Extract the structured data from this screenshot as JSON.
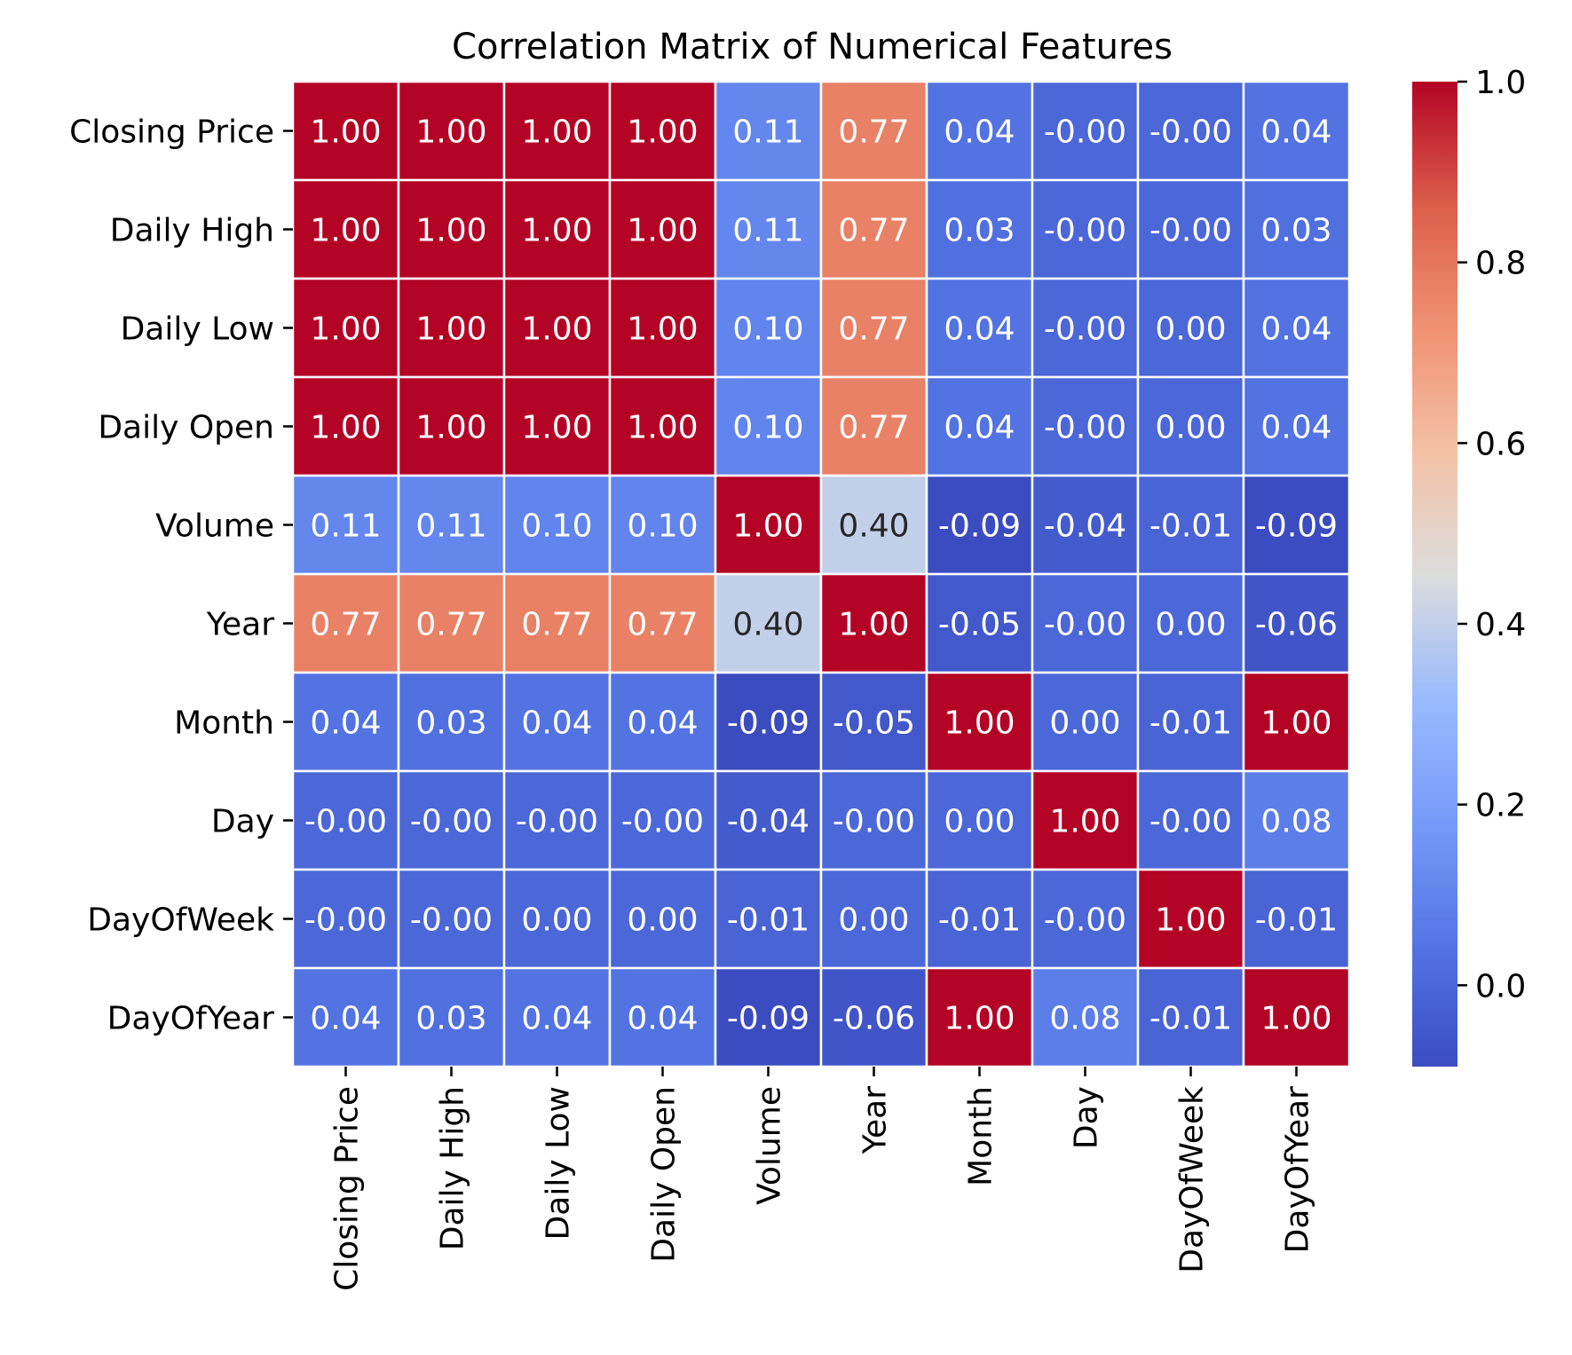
{
  "chart_data": {
    "type": "heatmap",
    "title": "Correlation Matrix of Numerical Features",
    "row_labels": [
      "Closing Price",
      "Daily High",
      "Daily Low",
      "Daily Open",
      "Volume",
      "Year",
      "Month",
      "Day",
      "DayOfWeek",
      "DayOfYear"
    ],
    "col_labels": [
      "Closing Price",
      "Daily High",
      "Daily Low",
      "Daily Open",
      "Volume",
      "Year",
      "Month",
      "Day",
      "DayOfWeek",
      "DayOfYear"
    ],
    "values": [
      [
        1.0,
        1.0,
        1.0,
        1.0,
        0.11,
        0.77,
        0.04,
        -0.0,
        -0.0,
        0.04
      ],
      [
        1.0,
        1.0,
        1.0,
        1.0,
        0.11,
        0.77,
        0.03,
        -0.0,
        -0.0,
        0.03
      ],
      [
        1.0,
        1.0,
        1.0,
        1.0,
        0.1,
        0.77,
        0.04,
        -0.0,
        0.0,
        0.04
      ],
      [
        1.0,
        1.0,
        1.0,
        1.0,
        0.1,
        0.77,
        0.04,
        -0.0,
        0.0,
        0.04
      ],
      [
        0.11,
        0.11,
        0.1,
        0.1,
        1.0,
        0.4,
        -0.09,
        -0.04,
        -0.01,
        -0.09
      ],
      [
        0.77,
        0.77,
        0.77,
        0.77,
        0.4,
        1.0,
        -0.05,
        -0.0,
        0.0,
        -0.06
      ],
      [
        0.04,
        0.03,
        0.04,
        0.04,
        -0.09,
        -0.05,
        1.0,
        0.0,
        -0.01,
        1.0
      ],
      [
        -0.0,
        -0.0,
        -0.0,
        -0.0,
        -0.04,
        -0.0,
        0.0,
        1.0,
        -0.0,
        0.08
      ],
      [
        -0.0,
        -0.0,
        0.0,
        0.0,
        -0.01,
        0.0,
        -0.01,
        -0.0,
        1.0,
        -0.01
      ],
      [
        0.04,
        0.03,
        0.04,
        0.04,
        -0.09,
        -0.06,
        1.0,
        0.08,
        -0.01,
        1.0
      ]
    ],
    "value_labels": [
      [
        "1.00",
        "1.00",
        "1.00",
        "1.00",
        "0.11",
        "0.77",
        "0.04",
        "-0.00",
        "-0.00",
        "0.04"
      ],
      [
        "1.00",
        "1.00",
        "1.00",
        "1.00",
        "0.11",
        "0.77",
        "0.03",
        "-0.00",
        "-0.00",
        "0.03"
      ],
      [
        "1.00",
        "1.00",
        "1.00",
        "1.00",
        "0.10",
        "0.77",
        "0.04",
        "-0.00",
        "0.00",
        "0.04"
      ],
      [
        "1.00",
        "1.00",
        "1.00",
        "1.00",
        "0.10",
        "0.77",
        "0.04",
        "-0.00",
        "0.00",
        "0.04"
      ],
      [
        "0.11",
        "0.11",
        "0.10",
        "0.10",
        "1.00",
        "0.40",
        "-0.09",
        "-0.04",
        "-0.01",
        "-0.09"
      ],
      [
        "0.77",
        "0.77",
        "0.77",
        "0.77",
        "0.40",
        "1.00",
        "-0.05",
        "-0.00",
        "0.00",
        "-0.06"
      ],
      [
        "0.04",
        "0.03",
        "0.04",
        "0.04",
        "-0.09",
        "-0.05",
        "1.00",
        "0.00",
        "-0.01",
        "1.00"
      ],
      [
        "-0.00",
        "-0.00",
        "-0.00",
        "-0.00",
        "-0.04",
        "-0.00",
        "0.00",
        "1.00",
        "-0.00",
        "0.08"
      ],
      [
        "-0.00",
        "-0.00",
        "0.00",
        "0.00",
        "-0.01",
        "0.00",
        "-0.01",
        "-0.00",
        "1.00",
        "-0.01"
      ],
      [
        "0.04",
        "0.03",
        "0.04",
        "0.04",
        "-0.09",
        "-0.06",
        "1.00",
        "0.08",
        "-0.01",
        "1.00"
      ]
    ],
    "colormap": "coolwarm",
    "color_range": [
      -0.09,
      1.0
    ],
    "colorbar_ticks": [
      0.0,
      0.2,
      0.4,
      0.6,
      0.8,
      1.0
    ],
    "colorbar_tick_labels": [
      "0.0",
      "0.2",
      "0.4",
      "0.6",
      "0.8",
      "1.0"
    ],
    "grid": false,
    "legend": "right"
  }
}
